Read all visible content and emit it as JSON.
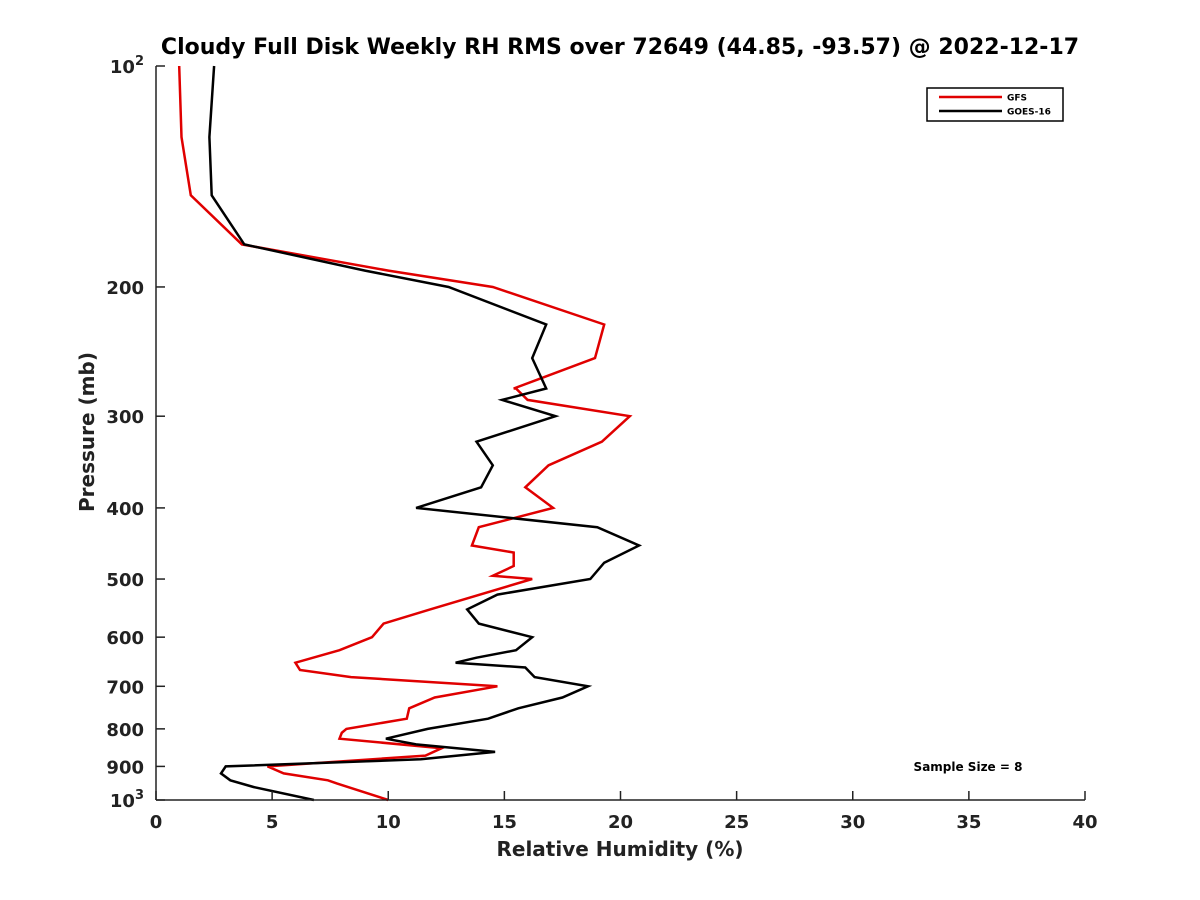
{
  "chart_data": {
    "type": "line",
    "title": "Cloudy Full Disk Weekly RH RMS over 72649 (44.85, -93.57) @ 2022-12-17",
    "xlabel": "Relative Humidity (%)",
    "ylabel": "Pressure (mb)",
    "xlim": [
      0,
      40
    ],
    "ylim": [
      1000,
      100
    ],
    "y_scale": "log",
    "y_reversed": true,
    "grid": false,
    "legend_position": "top-right",
    "x_ticks": [
      0,
      5,
      10,
      15,
      20,
      25,
      30,
      35,
      40
    ],
    "x_tick_labels": [
      "0",
      "5",
      "10",
      "15",
      "20",
      "25",
      "30",
      "35",
      "40"
    ],
    "y_ticks": [
      100,
      200,
      300,
      400,
      500,
      600,
      700,
      800,
      900,
      1000
    ],
    "y_tick_labels": [
      "10²",
      "200",
      "300",
      "400",
      "500",
      "600",
      "700",
      "800",
      "900",
      "10³"
    ],
    "series": [
      {
        "name": "GFS",
        "color": "#e00000",
        "points": [
          [
            1.0,
            100
          ],
          [
            1.1,
            125
          ],
          [
            1.5,
            150
          ],
          [
            3.7,
            175
          ],
          [
            10.0,
            190
          ],
          [
            14.5,
            200
          ],
          [
            19.3,
            225
          ],
          [
            18.9,
            250
          ],
          [
            15.4,
            275
          ],
          [
            15.5,
            275
          ],
          [
            16.0,
            285
          ],
          [
            20.4,
            300
          ],
          [
            19.2,
            325
          ],
          [
            16.9,
            350
          ],
          [
            15.9,
            375
          ],
          [
            17.1,
            400
          ],
          [
            13.9,
            425
          ],
          [
            13.6,
            450
          ],
          [
            15.4,
            460
          ],
          [
            15.4,
            480
          ],
          [
            14.5,
            495
          ],
          [
            16.2,
            500
          ],
          [
            11.8,
            550
          ],
          [
            9.8,
            575
          ],
          [
            9.3,
            600
          ],
          [
            7.9,
            625
          ],
          [
            6.0,
            650
          ],
          [
            6.2,
            665
          ],
          [
            8.4,
            680
          ],
          [
            14.7,
            700
          ],
          [
            12.0,
            725
          ],
          [
            10.9,
            750
          ],
          [
            10.8,
            775
          ],
          [
            8.2,
            800
          ],
          [
            8.0,
            810
          ],
          [
            7.9,
            825
          ],
          [
            12.3,
            850
          ],
          [
            11.6,
            870
          ],
          [
            4.8,
            900
          ],
          [
            5.5,
            920
          ],
          [
            7.4,
            940
          ],
          [
            7.8,
            950
          ],
          [
            10.0,
            1000
          ]
        ]
      },
      {
        "name": "GOES-16",
        "color": "#000000",
        "points": [
          [
            2.5,
            100
          ],
          [
            2.3,
            125
          ],
          [
            2.4,
            150
          ],
          [
            3.8,
            175
          ],
          [
            9.0,
            190
          ],
          [
            12.6,
            200
          ],
          [
            16.8,
            225
          ],
          [
            16.2,
            250
          ],
          [
            16.8,
            275
          ],
          [
            14.9,
            285
          ],
          [
            17.2,
            300
          ],
          [
            13.8,
            325
          ],
          [
            14.5,
            350
          ],
          [
            14.0,
            375
          ],
          [
            11.2,
            400
          ],
          [
            19.0,
            425
          ],
          [
            20.8,
            450
          ],
          [
            19.3,
            475
          ],
          [
            18.7,
            500
          ],
          [
            14.7,
            525
          ],
          [
            13.4,
            550
          ],
          [
            13.9,
            575
          ],
          [
            16.2,
            600
          ],
          [
            15.5,
            625
          ],
          [
            13.8,
            640
          ],
          [
            12.9,
            650
          ],
          [
            15.9,
            660
          ],
          [
            16.3,
            680
          ],
          [
            18.6,
            700
          ],
          [
            17.5,
            725
          ],
          [
            15.6,
            750
          ],
          [
            14.3,
            775
          ],
          [
            11.7,
            800
          ],
          [
            9.9,
            825
          ],
          [
            11.2,
            840
          ],
          [
            14.6,
            860
          ],
          [
            11.4,
            880
          ],
          [
            3.0,
            900
          ],
          [
            2.8,
            920
          ],
          [
            3.2,
            940
          ],
          [
            4.2,
            960
          ],
          [
            6.8,
            1000
          ]
        ]
      }
    ],
    "annotation": "Sample Size = 8"
  }
}
